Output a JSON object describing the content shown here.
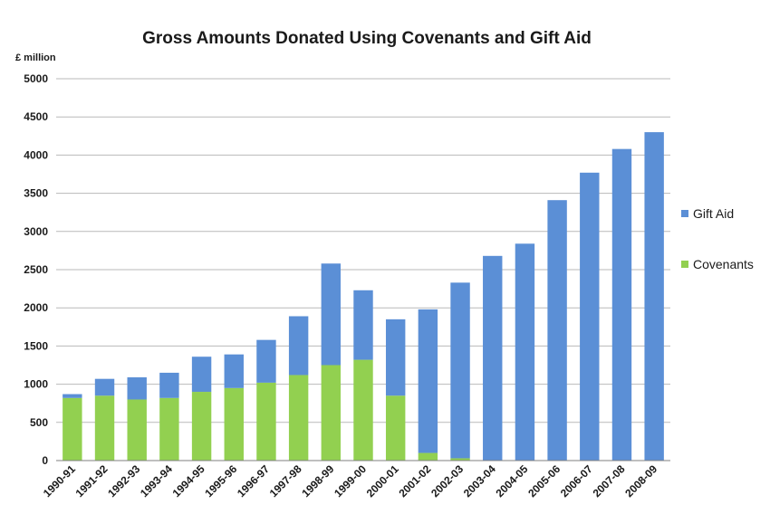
{
  "chart_data": {
    "type": "bar",
    "stacked": true,
    "title": "Gross Amounts Donated Using Covenants and Gift Aid",
    "ylabel": "£ million",
    "xlabel": "",
    "ylim": [
      0,
      5000
    ],
    "yticks": [
      0,
      500,
      1000,
      1500,
      2000,
      2500,
      3000,
      3500,
      4000,
      4500,
      5000
    ],
    "grid": true,
    "legend_position": "right",
    "categories": [
      "1990-91",
      "1991-92",
      "1992-93",
      "1993-94",
      "1994-95",
      "1995-96",
      "1996-97",
      "1997-98",
      "1998-99",
      "1999-00",
      "2000-01",
      "2001-02",
      "2002-03",
      "2003-04",
      "2004-05",
      "2005-06",
      "2006-07",
      "2007-08",
      "2008-09"
    ],
    "series": [
      {
        "name": "Covenants",
        "color": "#92d050",
        "values": [
          820,
          850,
          800,
          820,
          900,
          950,
          1020,
          1120,
          1250,
          1320,
          850,
          100,
          30,
          0,
          0,
          0,
          0,
          0,
          0
        ]
      },
      {
        "name": "Gift Aid",
        "color": "#5b8fd6",
        "values": [
          50,
          220,
          290,
          330,
          460,
          440,
          560,
          770,
          1330,
          910,
          1000,
          1880,
          2300,
          2680,
          2840,
          3410,
          3770,
          4080,
          4300
        ]
      }
    ],
    "legend_order": [
      "Gift Aid",
      "Covenants"
    ]
  }
}
